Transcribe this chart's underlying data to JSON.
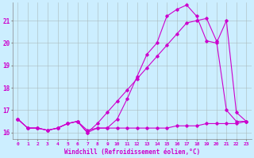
{
  "xlabel": "Windchill (Refroidissement éolien,°C)",
  "bg_color": "#cceeff",
  "line_color": "#cc00cc",
  "xlim": [
    -0.5,
    23.5
  ],
  "ylim": [
    15.7,
    21.8
  ],
  "yticks": [
    16,
    17,
    18,
    19,
    20,
    21
  ],
  "xticks": [
    0,
    1,
    2,
    3,
    4,
    5,
    6,
    7,
    8,
    9,
    10,
    11,
    12,
    13,
    14,
    15,
    16,
    17,
    18,
    19,
    20,
    21,
    22,
    23
  ],
  "series": [
    {
      "x": [
        0,
        1,
        2,
        3,
        4,
        5,
        6,
        7,
        8,
        9,
        10,
        11,
        12,
        13,
        14,
        15,
        16,
        17,
        18,
        19,
        20,
        21,
        22,
        23
      ],
      "y": [
        16.6,
        16.2,
        16.2,
        16.1,
        16.2,
        16.4,
        16.5,
        16.1,
        16.2,
        16.2,
        16.2,
        16.2,
        16.2,
        16.2,
        16.2,
        16.2,
        16.3,
        16.3,
        16.3,
        16.4,
        16.4,
        16.4,
        16.4,
        16.5
      ]
    },
    {
      "x": [
        0,
        1,
        2,
        3,
        4,
        5,
        6,
        7,
        8,
        9,
        10,
        11,
        12,
        13,
        14,
        15,
        16,
        17,
        18,
        19,
        20,
        21,
        22,
        23
      ],
      "y": [
        16.6,
        16.2,
        16.2,
        16.1,
        16.2,
        16.4,
        16.5,
        16.0,
        16.2,
        16.2,
        16.6,
        17.5,
        18.5,
        19.5,
        20.0,
        21.2,
        21.5,
        21.7,
        21.2,
        20.1,
        20.0,
        21.0,
        16.9,
        16.5
      ]
    },
    {
      "x": [
        0,
        1,
        2,
        3,
        4,
        5,
        6,
        7,
        8,
        9,
        10,
        11,
        12,
        13,
        14,
        15,
        16,
        17,
        18,
        19,
        20,
        21,
        22,
        23
      ],
      "y": [
        16.6,
        16.2,
        16.2,
        16.1,
        16.2,
        16.4,
        16.5,
        16.0,
        16.4,
        16.9,
        17.4,
        17.9,
        18.4,
        18.9,
        19.4,
        19.9,
        20.4,
        20.9,
        21.0,
        21.1,
        20.1,
        17.0,
        16.5,
        16.5
      ]
    }
  ]
}
